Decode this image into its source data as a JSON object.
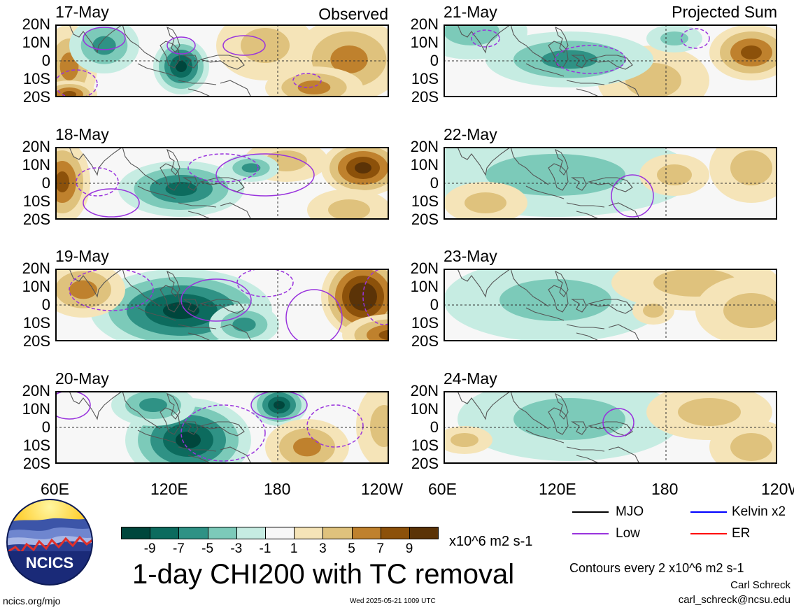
{
  "header": {
    "left_tag": "Observed",
    "right_tag": "Projected Sum"
  },
  "panels_observed": [
    {
      "date": "17-May"
    },
    {
      "date": "18-May"
    },
    {
      "date": "19-May"
    },
    {
      "date": "20-May"
    }
  ],
  "panels_projected": [
    {
      "date": "21-May"
    },
    {
      "date": "22-May"
    },
    {
      "date": "23-May"
    },
    {
      "date": "24-May"
    }
  ],
  "axes": {
    "lat_labels": [
      "20N",
      "10N",
      "0",
      "10S",
      "20S"
    ],
    "lon_labels": [
      "60E",
      "120E",
      "180",
      "120W"
    ]
  },
  "colorbar": {
    "labels": [
      "-9",
      "-7",
      "-5",
      "-3",
      "-1",
      "1",
      "3",
      "5",
      "7",
      "9"
    ],
    "units": "x10^6 m2 s-1",
    "colors": [
      "#00463c",
      "#0c6b5e",
      "#2f9285",
      "#7ccab9",
      "#c6ece2",
      "#f7f7f7",
      "#f5e4b8",
      "#dfc27d",
      "#bf812d",
      "#8c510a",
      "#5b3307"
    ]
  },
  "title": "1-day CHI200 with TC removal",
  "legend": {
    "items": [
      {
        "label": "MJO",
        "color": "#000000"
      },
      {
        "label": "Kelvin x2",
        "color": "#0000ff"
      },
      {
        "label": "Low",
        "color": "#9933dd"
      },
      {
        "label": "ER",
        "color": "#ff0000"
      }
    ],
    "contours_note": "Contours every 2 x10^6 m2 s-1"
  },
  "logo": {
    "text": "NCICS"
  },
  "footer": {
    "url": "ncics.org/mjo",
    "timestamp": "Wed 2025-05-21 1009 UTC",
    "author": "Carl Schreck",
    "email": "carl_schreck@ncsu.edu"
  }
}
